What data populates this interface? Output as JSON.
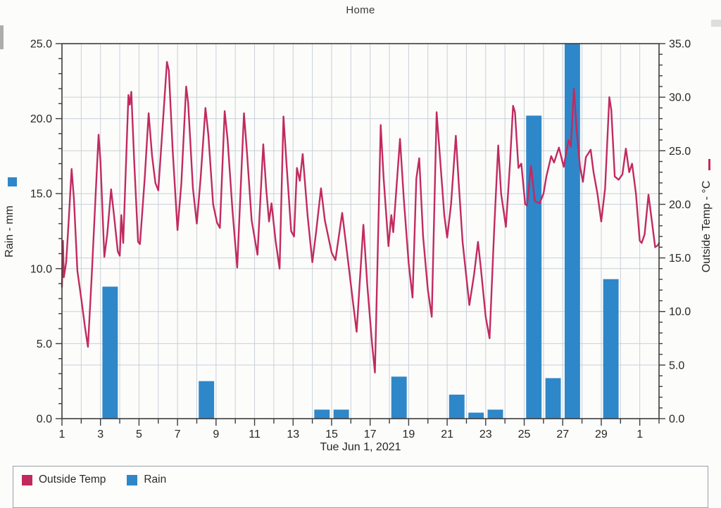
{
  "title": "Home",
  "legend": {
    "items": [
      {
        "label": "Outside Temp",
        "color": "#C22A5F"
      },
      {
        "label": "Rain",
        "color": "#2E87C8"
      }
    ]
  },
  "colors": {
    "temp": "#C22A5F",
    "rain": "#2E87C8",
    "grid": "#C9D0D8",
    "axis": "#3C3C3C",
    "text": "#262626",
    "legend_border": "#9AA0A5",
    "background": "#FCFCFB"
  },
  "chart_data": {
    "type": "line+bar",
    "title": "Home",
    "x_axis": {
      "label": "Tue Jun 1, 2021",
      "range_days": [
        1,
        32
      ],
      "tick_days": [
        1,
        3,
        5,
        7,
        9,
        11,
        13,
        15,
        17,
        19,
        21,
        23,
        25,
        27,
        29,
        31
      ],
      "tick_labels": [
        "1",
        "3",
        "5",
        "7",
        "9",
        "11",
        "13",
        "15",
        "17",
        "19",
        "21",
        "23",
        "25",
        "27",
        "29",
        "1"
      ],
      "minor_tick_every_days": 1,
      "grid_every_days": 1
    },
    "left_axis": {
      "label": "Rain - mm",
      "range": [
        0,
        25
      ],
      "major_ticks": [
        0,
        5,
        10,
        15,
        20,
        25
      ],
      "tick_labels": [
        "0.0",
        "5.0",
        "10.0",
        "15.0",
        "20.0",
        "25.0"
      ],
      "minor_tick_step": 1,
      "series": "Rain"
    },
    "right_axis": {
      "label": "Outside Temp - °C",
      "range": [
        0,
        35
      ],
      "major_ticks": [
        0,
        5,
        10,
        15,
        20,
        25,
        30,
        35
      ],
      "tick_labels": [
        "0.0",
        "5.0",
        "10.0",
        "15.0",
        "20.0",
        "25.0",
        "30.0",
        "35.0"
      ],
      "minor_tick_step": 1,
      "series": "Outside Temp"
    },
    "grid": true,
    "legend_position": "bottom",
    "rain_series": {
      "name": "Rain",
      "type": "bar",
      "unit": "mm",
      "daily": [
        {
          "day": 3,
          "mm": 8.8
        },
        {
          "day": 8,
          "mm": 2.5
        },
        {
          "day": 14,
          "mm": 0.6
        },
        {
          "day": 15,
          "mm": 0.6
        },
        {
          "day": 18,
          "mm": 2.8
        },
        {
          "day": 21,
          "mm": 1.6
        },
        {
          "day": 22,
          "mm": 0.4
        },
        {
          "day": 23,
          "mm": 0.6
        },
        {
          "day": 25,
          "mm": 20.2
        },
        {
          "day": 26,
          "mm": 2.7
        },
        {
          "day": 27,
          "mm": 25.0
        },
        {
          "day": 29,
          "mm": 9.3
        }
      ]
    },
    "temp_series": {
      "name": "Outside Temp",
      "type": "line",
      "unit": "°C",
      "points": [
        [
          1.0,
          12.3
        ],
        [
          1.05,
          16.6
        ],
        [
          1.1,
          13.2
        ],
        [
          1.22,
          14.6
        ],
        [
          1.35,
          18.5
        ],
        [
          1.5,
          23.3
        ],
        [
          1.62,
          20.5
        ],
        [
          1.8,
          13.8
        ],
        [
          2.0,
          11.2
        ],
        [
          2.2,
          8.5
        ],
        [
          2.35,
          6.7
        ],
        [
          2.55,
          13.5
        ],
        [
          2.75,
          21.0
        ],
        [
          2.9,
          26.5
        ],
        [
          3.0,
          24.0
        ],
        [
          3.2,
          15.1
        ],
        [
          3.35,
          17.2
        ],
        [
          3.55,
          21.4
        ],
        [
          3.7,
          19.0
        ],
        [
          3.9,
          15.6
        ],
        [
          4.0,
          15.2
        ],
        [
          4.08,
          19.0
        ],
        [
          4.18,
          16.4
        ],
        [
          4.35,
          25.0
        ],
        [
          4.45,
          30.2
        ],
        [
          4.52,
          29.3
        ],
        [
          4.6,
          30.5
        ],
        [
          4.75,
          24.0
        ],
        [
          4.95,
          16.5
        ],
        [
          5.05,
          16.3
        ],
        [
          5.3,
          22.5
        ],
        [
          5.5,
          28.5
        ],
        [
          5.68,
          24.5
        ],
        [
          5.85,
          22.0
        ],
        [
          6.0,
          21.3
        ],
        [
          6.2,
          26.5
        ],
        [
          6.45,
          33.3
        ],
        [
          6.55,
          32.5
        ],
        [
          6.75,
          25.0
        ],
        [
          7.0,
          17.6
        ],
        [
          7.2,
          22.0
        ],
        [
          7.45,
          31.0
        ],
        [
          7.55,
          29.5
        ],
        [
          7.8,
          21.5
        ],
        [
          8.0,
          18.2
        ],
        [
          8.2,
          22.5
        ],
        [
          8.45,
          29.0
        ],
        [
          8.6,
          26.5
        ],
        [
          8.85,
          20.0
        ],
        [
          9.05,
          18.3
        ],
        [
          9.2,
          17.8
        ],
        [
          9.45,
          28.7
        ],
        [
          9.6,
          26.0
        ],
        [
          9.85,
          19.5
        ],
        [
          10.1,
          14.1
        ],
        [
          10.45,
          28.5
        ],
        [
          10.6,
          25.0
        ],
        [
          10.85,
          18.5
        ],
        [
          11.15,
          15.3
        ],
        [
          11.45,
          25.6
        ],
        [
          11.6,
          21.5
        ],
        [
          11.75,
          18.4
        ],
        [
          11.88,
          20.1
        ],
        [
          12.1,
          16.5
        ],
        [
          12.3,
          14.0
        ],
        [
          12.5,
          28.2
        ],
        [
          12.65,
          24.0
        ],
        [
          12.9,
          17.5
        ],
        [
          13.05,
          17.0
        ],
        [
          13.2,
          23.4
        ],
        [
          13.35,
          22.2
        ],
        [
          13.5,
          24.7
        ],
        [
          13.75,
          19.0
        ],
        [
          14.0,
          14.6
        ],
        [
          14.2,
          17.5
        ],
        [
          14.45,
          21.5
        ],
        [
          14.65,
          18.5
        ],
        [
          15.0,
          15.5
        ],
        [
          15.2,
          14.8
        ],
        [
          15.55,
          19.2
        ],
        [
          15.8,
          15.5
        ],
        [
          16.1,
          11.0
        ],
        [
          16.3,
          8.1
        ],
        [
          16.65,
          18.1
        ],
        [
          16.85,
          12.5
        ],
        [
          17.1,
          7.0
        ],
        [
          17.25,
          4.3
        ],
        [
          17.55,
          27.4
        ],
        [
          17.7,
          22.5
        ],
        [
          17.95,
          16.1
        ],
        [
          18.1,
          19.0
        ],
        [
          18.2,
          17.4
        ],
        [
          18.55,
          26.1
        ],
        [
          18.75,
          20.5
        ],
        [
          19.0,
          14.5
        ],
        [
          19.2,
          11.3
        ],
        [
          19.4,
          22.4
        ],
        [
          19.55,
          24.3
        ],
        [
          19.75,
          17.0
        ],
        [
          20.0,
          12.0
        ],
        [
          20.2,
          9.5
        ],
        [
          20.45,
          28.6
        ],
        [
          20.6,
          25.0
        ],
        [
          20.85,
          19.0
        ],
        [
          21.0,
          16.9
        ],
        [
          21.2,
          20.0
        ],
        [
          21.45,
          26.4
        ],
        [
          21.6,
          22.0
        ],
        [
          21.8,
          16.5
        ],
        [
          22.15,
          10.6
        ],
        [
          22.4,
          13.5
        ],
        [
          22.6,
          16.5
        ],
        [
          22.75,
          14.0
        ],
        [
          23.0,
          9.5
        ],
        [
          23.2,
          7.5
        ],
        [
          23.45,
          18.0
        ],
        [
          23.65,
          25.5
        ],
        [
          23.8,
          21.0
        ],
        [
          24.05,
          17.9
        ],
        [
          24.25,
          23.5
        ],
        [
          24.42,
          29.2
        ],
        [
          24.52,
          28.6
        ],
        [
          24.7,
          23.4
        ],
        [
          24.85,
          23.8
        ],
        [
          25.05,
          20.0
        ],
        [
          25.15,
          19.9
        ],
        [
          25.35,
          23.6
        ],
        [
          25.55,
          20.3
        ],
        [
          25.8,
          20.1
        ],
        [
          26.0,
          21.0
        ],
        [
          26.15,
          22.6
        ],
        [
          26.4,
          24.5
        ],
        [
          26.55,
          23.9
        ],
        [
          26.8,
          25.3
        ],
        [
          27.05,
          23.5
        ],
        [
          27.3,
          26.0
        ],
        [
          27.42,
          25.4
        ],
        [
          27.58,
          30.8
        ],
        [
          27.72,
          27.0
        ],
        [
          27.9,
          23.5
        ],
        [
          28.05,
          22.1
        ],
        [
          28.2,
          24.4
        ],
        [
          28.45,
          25.1
        ],
        [
          28.6,
          23.0
        ],
        [
          28.8,
          21.0
        ],
        [
          29.0,
          18.4
        ],
        [
          29.2,
          21.5
        ],
        [
          29.42,
          30.0
        ],
        [
          29.52,
          28.8
        ],
        [
          29.7,
          22.6
        ],
        [
          29.9,
          22.3
        ],
        [
          30.1,
          22.8
        ],
        [
          30.28,
          25.2
        ],
        [
          30.45,
          23.0
        ],
        [
          30.6,
          23.8
        ],
        [
          30.8,
          21.0
        ],
        [
          31.0,
          16.6
        ],
        [
          31.1,
          16.4
        ],
        [
          31.25,
          17.2
        ],
        [
          31.45,
          20.9
        ],
        [
          31.6,
          18.8
        ],
        [
          31.8,
          16.0
        ],
        [
          31.95,
          16.2
        ],
        [
          32.0,
          16.4
        ]
      ]
    }
  }
}
